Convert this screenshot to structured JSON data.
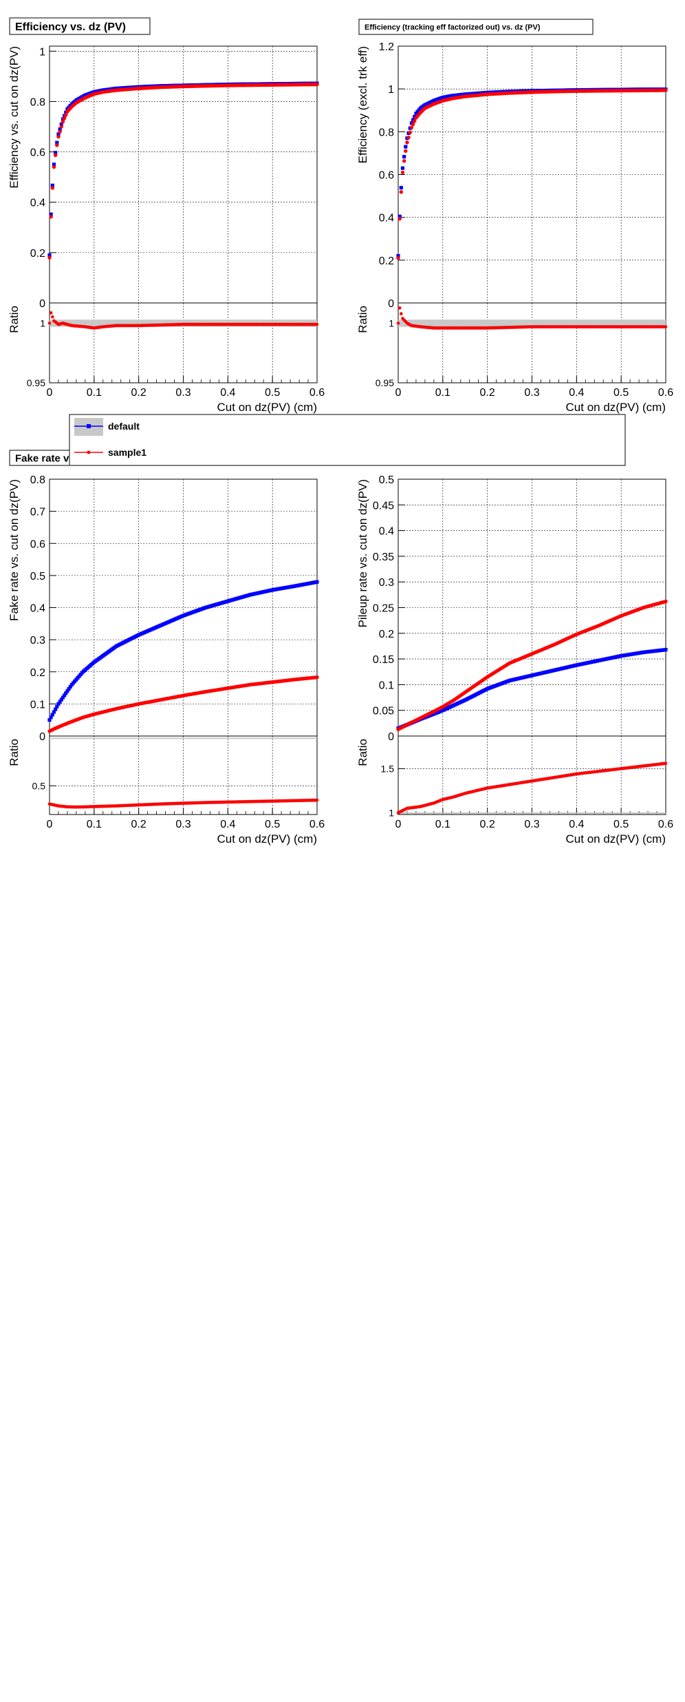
{
  "legend": {
    "entries": [
      {
        "label": "default",
        "color": "#0000ff",
        "band": "#c8c8c8"
      },
      {
        "label": "sample1",
        "color": "#ff0000"
      }
    ]
  },
  "chart_data": [
    {
      "id": "eff",
      "type": "scatter",
      "title": "Efficiency vs. dz (PV)",
      "xlabel": "Cut on dz(PV) (cm)",
      "ylabel": "Efficiency vs. cut on dz(PV)",
      "ratio_ylabel": "Ratio",
      "xlim": [
        0,
        0.6
      ],
      "ylim": [
        0,
        1.02
      ],
      "xticks": [
        "0",
        "0.1",
        "0.2",
        "0.3",
        "0.4",
        "0.5",
        "0.6"
      ],
      "yticks": [
        {
          "v": 0,
          "t": "0"
        },
        {
          "v": 0.2,
          "t": "0.2"
        },
        {
          "v": 0.4,
          "t": "0.4"
        },
        {
          "v": 0.6,
          "t": "0.6"
        },
        {
          "v": 0.8,
          "t": "0.8"
        },
        {
          "v": 1.0,
          "t": "1"
        }
      ],
      "ratio_ylim": [
        0.95,
        1.017
      ],
      "ratio_yticks": [
        {
          "v": 0.95,
          "t": "0.95"
        },
        {
          "v": 1.0,
          "t": "1"
        }
      ],
      "series": [
        {
          "name": "default",
          "color": "#0000ff",
          "x": [
            0.001,
            0.003,
            0.006,
            0.01,
            0.015,
            0.02,
            0.03,
            0.04,
            0.05,
            0.06,
            0.08,
            0.1,
            0.12,
            0.15,
            0.2,
            0.25,
            0.3,
            0.35,
            0.4,
            0.45,
            0.5,
            0.55,
            0.6
          ],
          "y": [
            0.19,
            0.34,
            0.45,
            0.55,
            0.62,
            0.67,
            0.73,
            0.77,
            0.79,
            0.805,
            0.825,
            0.838,
            0.845,
            0.852,
            0.858,
            0.862,
            0.864,
            0.866,
            0.868,
            0.869,
            0.87,
            0.871,
            0.872
          ]
        },
        {
          "name": "sample1",
          "color": "#ff0000",
          "x": [
            0.001,
            0.003,
            0.006,
            0.01,
            0.015,
            0.02,
            0.03,
            0.04,
            0.05,
            0.06,
            0.08,
            0.1,
            0.12,
            0.15,
            0.2,
            0.25,
            0.3,
            0.35,
            0.4,
            0.45,
            0.5,
            0.55,
            0.6
          ],
          "y": [
            0.18,
            0.33,
            0.44,
            0.54,
            0.61,
            0.66,
            0.72,
            0.76,
            0.78,
            0.795,
            0.815,
            0.83,
            0.838,
            0.845,
            0.852,
            0.857,
            0.86,
            0.862,
            0.864,
            0.865,
            0.866,
            0.867,
            0.868
          ]
        }
      ],
      "ratio": {
        "x": [
          0.0,
          0.002,
          0.005,
          0.01,
          0.02,
          0.03,
          0.05,
          0.08,
          0.1,
          0.12,
          0.15,
          0.2,
          0.3,
          0.4,
          0.5,
          0.6
        ],
        "y": [
          1.0,
          1.01,
          1.007,
          1.002,
          0.999,
          1.0,
          0.998,
          0.997,
          0.996,
          0.997,
          0.998,
          0.998,
          0.999,
          0.999,
          0.999,
          0.999
        ]
      }
    },
    {
      "id": "eff_excl",
      "type": "scatter",
      "title": "Efficiency (tracking eff factorized out) vs. dz (PV)",
      "xlabel": "Cut on dz(PV) (cm)",
      "ylabel": "Efficiency (excl. trk eff)",
      "ratio_ylabel": "Ratio",
      "xlim": [
        0,
        0.6
      ],
      "ylim": [
        0,
        1.2
      ],
      "xticks": [
        "0",
        "0.1",
        "0.2",
        "0.3",
        "0.4",
        "0.5",
        "0.6"
      ],
      "yticks": [
        {
          "v": 0,
          "t": "0"
        },
        {
          "v": 0.2,
          "t": "0.2"
        },
        {
          "v": 0.4,
          "t": "0.4"
        },
        {
          "v": 0.6,
          "t": "0.6"
        },
        {
          "v": 0.8,
          "t": "0.8"
        },
        {
          "v": 1.0,
          "t": "1"
        },
        {
          "v": 1.2,
          "t": "1.2"
        }
      ],
      "ratio_ylim": [
        0.95,
        1.017
      ],
      "ratio_yticks": [
        {
          "v": 0.95,
          "t": "0.95"
        },
        {
          "v": 1.0,
          "t": "1"
        }
      ],
      "series": [
        {
          "name": "default",
          "color": "#0000ff",
          "x": [
            0.001,
            0.003,
            0.006,
            0.01,
            0.015,
            0.02,
            0.03,
            0.04,
            0.05,
            0.06,
            0.08,
            0.1,
            0.12,
            0.15,
            0.2,
            0.25,
            0.3,
            0.35,
            0.4,
            0.45,
            0.5,
            0.55,
            0.6
          ],
          "y": [
            0.22,
            0.39,
            0.52,
            0.63,
            0.71,
            0.77,
            0.84,
            0.885,
            0.91,
            0.925,
            0.945,
            0.96,
            0.968,
            0.975,
            0.983,
            0.988,
            0.991,
            0.993,
            0.995,
            0.996,
            0.997,
            0.998,
            0.998
          ]
        },
        {
          "name": "sample1",
          "color": "#ff0000",
          "x": [
            0.001,
            0.003,
            0.006,
            0.01,
            0.015,
            0.02,
            0.03,
            0.04,
            0.05,
            0.06,
            0.08,
            0.1,
            0.12,
            0.15,
            0.2,
            0.25,
            0.3,
            0.35,
            0.4,
            0.45,
            0.5,
            0.55,
            0.6
          ],
          "y": [
            0.21,
            0.38,
            0.5,
            0.61,
            0.69,
            0.75,
            0.82,
            0.865,
            0.89,
            0.91,
            0.93,
            0.945,
            0.955,
            0.965,
            0.975,
            0.981,
            0.985,
            0.988,
            0.99,
            0.991,
            0.992,
            0.993,
            0.994
          ]
        }
      ],
      "ratio": {
        "x": [
          0.0,
          0.002,
          0.005,
          0.01,
          0.02,
          0.03,
          0.05,
          0.08,
          0.1,
          0.12,
          0.15,
          0.2,
          0.3,
          0.4,
          0.5,
          0.6
        ],
        "y": [
          1.0,
          1.015,
          1.01,
          1.004,
          1.0,
          0.998,
          0.997,
          0.996,
          0.996,
          0.996,
          0.996,
          0.996,
          0.997,
          0.997,
          0.997,
          0.997
        ]
      }
    },
    {
      "id": "fake",
      "type": "scatter",
      "title": "Fake rate vs. dz (PV)",
      "xlabel": "Cut on dz(PV) (cm)",
      "ylabel": "Fake rate vs. cut on dz(PV)",
      "ratio_ylabel": "Ratio",
      "xlim": [
        0,
        0.6
      ],
      "ylim": [
        0,
        0.8
      ],
      "xticks": [
        "0",
        "0.1",
        "0.2",
        "0.3",
        "0.4",
        "0.5",
        "0.6"
      ],
      "yticks": [
        {
          "v": 0,
          "t": "0"
        },
        {
          "v": 0.1,
          "t": "0.1"
        },
        {
          "v": 0.2,
          "t": "0.2"
        },
        {
          "v": 0.3,
          "t": "0.3"
        },
        {
          "v": 0.4,
          "t": "0.4"
        },
        {
          "v": 0.5,
          "t": "0.5"
        },
        {
          "v": 0.6,
          "t": "0.6"
        },
        {
          "v": 0.7,
          "t": "0.7"
        },
        {
          "v": 0.8,
          "t": "0.8"
        }
      ],
      "ratio_ylim": [
        0.2,
        1.02
      ],
      "ratio_yticks": [
        {
          "v": 0.5,
          "t": "0.5"
        }
      ],
      "series": [
        {
          "name": "default",
          "color": "#0000ff",
          "x": [
            0.0,
            0.01,
            0.02,
            0.03,
            0.05,
            0.075,
            0.1,
            0.15,
            0.2,
            0.25,
            0.3,
            0.35,
            0.4,
            0.45,
            0.5,
            0.55,
            0.6
          ],
          "y": [
            0.05,
            0.075,
            0.1,
            0.12,
            0.16,
            0.2,
            0.23,
            0.28,
            0.315,
            0.345,
            0.375,
            0.4,
            0.42,
            0.44,
            0.455,
            0.467,
            0.48
          ]
        },
        {
          "name": "sample1",
          "color": "#ff0000",
          "x": [
            0.0,
            0.01,
            0.02,
            0.03,
            0.05,
            0.075,
            0.1,
            0.15,
            0.2,
            0.25,
            0.3,
            0.35,
            0.4,
            0.45,
            0.5,
            0.55,
            0.6
          ],
          "y": [
            0.015,
            0.022,
            0.028,
            0.034,
            0.045,
            0.058,
            0.068,
            0.085,
            0.1,
            0.113,
            0.126,
            0.138,
            0.149,
            0.16,
            0.168,
            0.176,
            0.183
          ]
        }
      ],
      "ratio": {
        "x": [
          0.0,
          0.01,
          0.02,
          0.04,
          0.06,
          0.08,
          0.1,
          0.15,
          0.2,
          0.25,
          0.3,
          0.35,
          0.4,
          0.45,
          0.5,
          0.55,
          0.6
        ],
        "y": [
          0.31,
          0.3,
          0.29,
          0.28,
          0.278,
          0.28,
          0.283,
          0.29,
          0.3,
          0.31,
          0.318,
          0.325,
          0.33,
          0.335,
          0.34,
          0.345,
          0.35
        ]
      }
    },
    {
      "id": "pileup",
      "type": "scatter",
      "title": "",
      "xlabel": "Cut on dz(PV) (cm)",
      "ylabel": "Pileup rate vs. cut on dz(PV)",
      "ratio_ylabel": "Ratio",
      "xlim": [
        0,
        0.6
      ],
      "ylim": [
        0,
        0.5
      ],
      "xticks": [
        "0",
        "0.1",
        "0.2",
        "0.3",
        "0.4",
        "0.5",
        "0.6"
      ],
      "yticks": [
        {
          "v": 0,
          "t": "0"
        },
        {
          "v": 0.05,
          "t": "0.05"
        },
        {
          "v": 0.1,
          "t": "0.1"
        },
        {
          "v": 0.15,
          "t": "0.15"
        },
        {
          "v": 0.2,
          "t": "0.2"
        },
        {
          "v": 0.25,
          "t": "0.25"
        },
        {
          "v": 0.3,
          "t": "0.3"
        },
        {
          "v": 0.35,
          "t": "0.35"
        },
        {
          "v": 0.4,
          "t": "0.4"
        },
        {
          "v": 0.45,
          "t": "0.45"
        },
        {
          "v": 0.5,
          "t": "0.5"
        }
      ],
      "ratio_ylim": [
        0.98,
        1.87
      ],
      "ratio_yticks": [
        {
          "v": 1.0,
          "t": "1"
        },
        {
          "v": 1.5,
          "t": "1.5"
        }
      ],
      "series": [
        {
          "name": "default",
          "color": "#0000ff",
          "x": [
            0.0,
            0.02,
            0.05,
            0.08,
            0.1,
            0.125,
            0.15,
            0.2,
            0.25,
            0.3,
            0.35,
            0.4,
            0.45,
            0.5,
            0.55,
            0.6
          ],
          "y": [
            0.015,
            0.022,
            0.033,
            0.043,
            0.05,
            0.06,
            0.07,
            0.092,
            0.108,
            0.118,
            0.128,
            0.138,
            0.147,
            0.156,
            0.163,
            0.168
          ]
        },
        {
          "name": "sample1",
          "color": "#ff0000",
          "x": [
            0.0,
            0.02,
            0.05,
            0.08,
            0.1,
            0.125,
            0.15,
            0.2,
            0.25,
            0.3,
            0.35,
            0.4,
            0.45,
            0.5,
            0.55,
            0.6
          ],
          "y": [
            0.013,
            0.022,
            0.035,
            0.048,
            0.057,
            0.07,
            0.085,
            0.115,
            0.142,
            0.16,
            0.178,
            0.198,
            0.215,
            0.234,
            0.25,
            0.262
          ]
        }
      ],
      "ratio": {
        "x": [
          0.0,
          0.02,
          0.05,
          0.08,
          0.1,
          0.125,
          0.15,
          0.2,
          0.25,
          0.3,
          0.35,
          0.4,
          0.45,
          0.5,
          0.55,
          0.6
        ],
        "y": [
          1.0,
          1.05,
          1.07,
          1.11,
          1.15,
          1.18,
          1.22,
          1.28,
          1.32,
          1.36,
          1.4,
          1.44,
          1.47,
          1.5,
          1.53,
          1.56
        ]
      }
    }
  ]
}
